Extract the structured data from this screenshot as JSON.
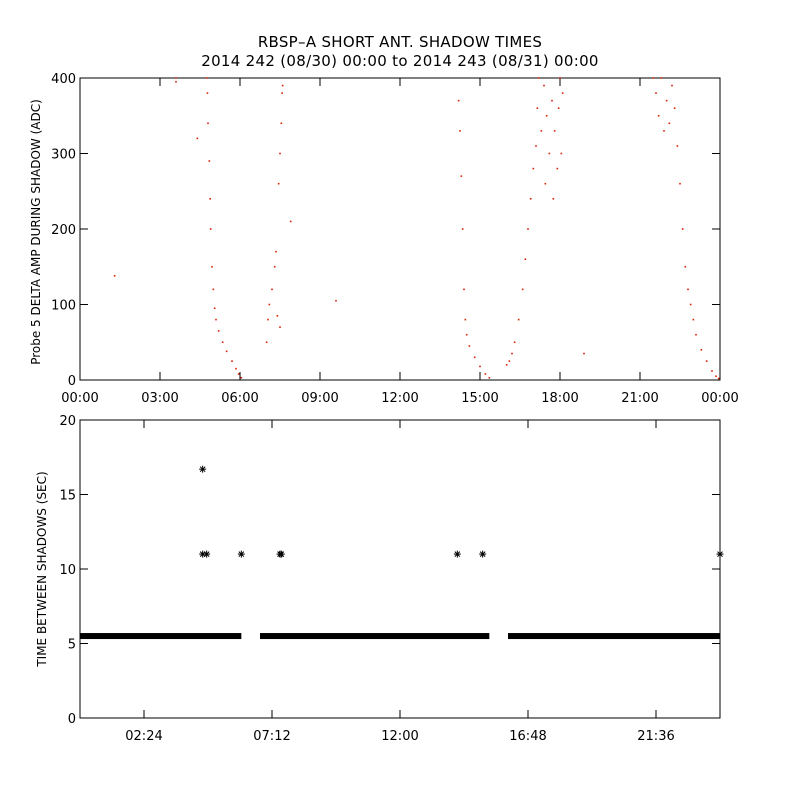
{
  "title_line1": "RBSP–A SHORT ANT. SHADOW TIMES",
  "title_line2": "2014 242 (08/30) 00:00 to 2014 243 (08/31) 00:00",
  "colors": {
    "top_points": "#dd2200",
    "bottom_points": "#000000",
    "axes": "#000000",
    "background": "#ffffff"
  },
  "chart_data": [
    {
      "type": "scatter",
      "ylabel": "Probe 5 DELTA AMP DURING SHADOW (ADC)",
      "xlabel": "",
      "xlim_hours": [
        0,
        24
      ],
      "ylim": [
        0,
        400
      ],
      "xticks": [
        {
          "hour": 0,
          "label": "00:00"
        },
        {
          "hour": 3,
          "label": "03:00"
        },
        {
          "hour": 6,
          "label": "06:00"
        },
        {
          "hour": 9,
          "label": "09:00"
        },
        {
          "hour": 12,
          "label": "12:00"
        },
        {
          "hour": 15,
          "label": "15:00"
        },
        {
          "hour": 18,
          "label": "18:00"
        },
        {
          "hour": 21,
          "label": "21:00"
        },
        {
          "hour": 24,
          "label": "00:00"
        }
      ],
      "yticks": [
        0,
        100,
        200,
        300,
        400
      ],
      "series": [
        {
          "points": [
            [
              1.3,
              138
            ],
            [
              3.6,
              395
            ],
            [
              3.6,
              400
            ],
            [
              4.4,
              320
            ],
            [
              4.75,
              400
            ],
            [
              4.78,
              380
            ],
            [
              4.8,
              340
            ],
            [
              4.85,
              290
            ],
            [
              4.88,
              240
            ],
            [
              4.9,
              200
            ],
            [
              4.95,
              150
            ],
            [
              5.0,
              120
            ],
            [
              5.05,
              95
            ],
            [
              5.1,
              80
            ],
            [
              5.2,
              65
            ],
            [
              5.35,
              50
            ],
            [
              5.5,
              38
            ],
            [
              5.7,
              25
            ],
            [
              5.85,
              15
            ],
            [
              5.95,
              8
            ],
            [
              6.05,
              3
            ],
            [
              7.0,
              50
            ],
            [
              7.05,
              80
            ],
            [
              7.1,
              100
            ],
            [
              7.2,
              120
            ],
            [
              7.3,
              150
            ],
            [
              7.35,
              170
            ],
            [
              7.4,
              85
            ],
            [
              7.45,
              260
            ],
            [
              7.5,
              300
            ],
            [
              7.5,
              70
            ],
            [
              7.55,
              340
            ],
            [
              7.58,
              380
            ],
            [
              7.6,
              390
            ],
            [
              7.9,
              210
            ],
            [
              9.6,
              105
            ],
            [
              14.2,
              370
            ],
            [
              14.25,
              330
            ],
            [
              14.3,
              270
            ],
            [
              14.35,
              200
            ],
            [
              14.4,
              120
            ],
            [
              14.45,
              80
            ],
            [
              14.5,
              60
            ],
            [
              14.6,
              45
            ],
            [
              14.8,
              30
            ],
            [
              15.0,
              18
            ],
            [
              15.2,
              8
            ],
            [
              15.35,
              3
            ],
            [
              16.0,
              20
            ],
            [
              16.1,
              25
            ],
            [
              16.2,
              35
            ],
            [
              16.3,
              50
            ],
            [
              16.45,
              80
            ],
            [
              16.6,
              120
            ],
            [
              16.7,
              160
            ],
            [
              16.8,
              200
            ],
            [
              16.9,
              240
            ],
            [
              17.0,
              280
            ],
            [
              17.1,
              310
            ],
            [
              17.15,
              360
            ],
            [
              17.2,
              400
            ],
            [
              17.3,
              330
            ],
            [
              17.4,
              390
            ],
            [
              17.45,
              260
            ],
            [
              17.5,
              350
            ],
            [
              17.6,
              300
            ],
            [
              17.7,
              370
            ],
            [
              17.75,
              240
            ],
            [
              17.8,
              330
            ],
            [
              17.9,
              280
            ],
            [
              17.95,
              360
            ],
            [
              18.0,
              400
            ],
            [
              18.05,
              300
            ],
            [
              18.1,
              380
            ],
            [
              18.9,
              35
            ],
            [
              21.5,
              400
            ],
            [
              21.6,
              380
            ],
            [
              21.7,
              350
            ],
            [
              21.8,
              400
            ],
            [
              21.9,
              330
            ],
            [
              22.0,
              370
            ],
            [
              22.1,
              340
            ],
            [
              22.2,
              390
            ],
            [
              22.3,
              360
            ],
            [
              22.4,
              310
            ],
            [
              22.5,
              260
            ],
            [
              22.6,
              200
            ],
            [
              22.7,
              150
            ],
            [
              22.8,
              120
            ],
            [
              22.9,
              100
            ],
            [
              23.0,
              80
            ],
            [
              23.1,
              60
            ],
            [
              23.3,
              40
            ],
            [
              23.5,
              25
            ],
            [
              23.7,
              12
            ],
            [
              23.85,
              5
            ],
            [
              23.95,
              2
            ]
          ]
        }
      ]
    },
    {
      "type": "scatter",
      "ylabel": "TIME BETWEEN SHADOWS (SEC)",
      "xlabel": "",
      "xlim_hours": [
        0,
        24
      ],
      "ylim": [
        0,
        20
      ],
      "xticks": [
        {
          "hour": 2.4,
          "label": "02:24"
        },
        {
          "hour": 7.2,
          "label": "07:12"
        },
        {
          "hour": 12.0,
          "label": "12:00"
        },
        {
          "hour": 16.8,
          "label": "16:48"
        },
        {
          "hour": 21.6,
          "label": "21:36"
        }
      ],
      "yticks": [
        0,
        5,
        10,
        15,
        20
      ],
      "baseline_value": 5.5,
      "baseline_segments_hours": [
        [
          0.0,
          6.05
        ],
        [
          6.75,
          15.35
        ],
        [
          16.05,
          24.0
        ]
      ],
      "series": [
        {
          "points": [
            [
              4.6,
              16.7
            ],
            [
              4.6,
              11
            ],
            [
              4.75,
              11
            ],
            [
              6.05,
              11
            ],
            [
              7.5,
              11
            ],
            [
              7.55,
              11
            ],
            [
              14.15,
              11
            ],
            [
              15.1,
              11
            ],
            [
              24.0,
              11
            ]
          ]
        }
      ]
    }
  ]
}
